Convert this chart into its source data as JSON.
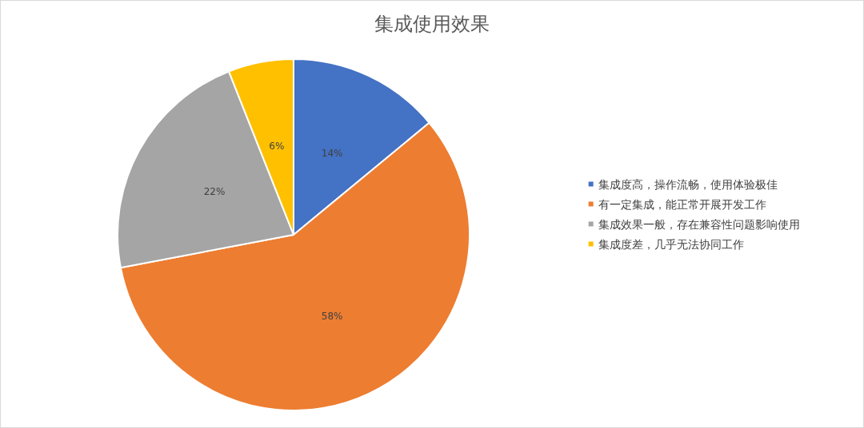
{
  "chart_data": {
    "type": "pie",
    "title": "集成使用效果",
    "categories": [
      "集成度高，操作流畅，使用体验极佳",
      "有一定集成，能正常开展开发工作",
      "集成效果一般，存在兼容性问题影响使用",
      "集成度差，几乎无法协同工作"
    ],
    "values": [
      14,
      58,
      22,
      6
    ],
    "colors": [
      "#4472c4",
      "#ed7d31",
      "#a5a5a5",
      "#ffc000"
    ],
    "value_labels": [
      "14%",
      "58%",
      "22%",
      "6%"
    ],
    "legend": "right"
  }
}
